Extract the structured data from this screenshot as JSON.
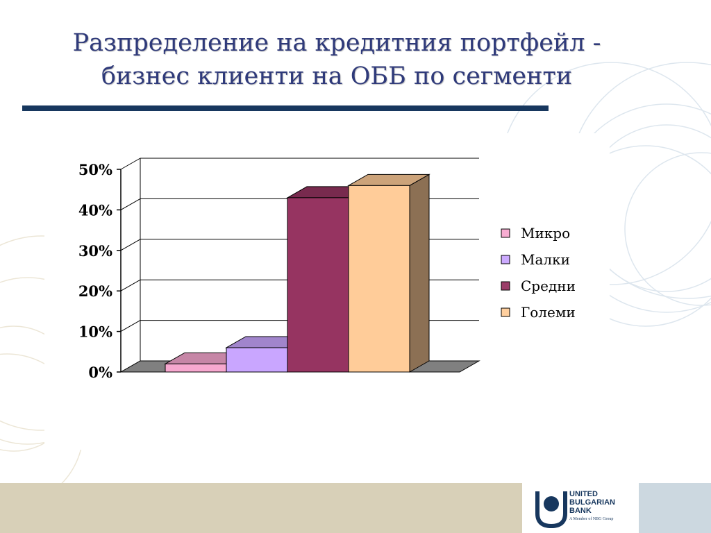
{
  "slide": {
    "title_line1": "Разпределение на кредитния портфейл -",
    "title_line2": "бизнес клиенти на ОББ по сегменти"
  },
  "brand": {
    "name_line1": "UNITED",
    "name_line2": "BULGARIAN",
    "name_line3": "BANK",
    "tagline": "A Member of NBG Group"
  },
  "colors": {
    "title": "#2f3a7a",
    "rule": "#17375e",
    "footer_band": "#d8d0b8"
  },
  "chart_data": {
    "type": "bar",
    "style": "3d-clustered",
    "title": "",
    "xlabel": "",
    "ylabel": "",
    "ylim": [
      0,
      0.5
    ],
    "y_ticks": [
      "0%",
      "10%",
      "20%",
      "30%",
      "40%",
      "50%"
    ],
    "grid": true,
    "legend_position": "right",
    "series": [
      {
        "name": "Микро",
        "value": 0.02,
        "color": "#f7a8cf"
      },
      {
        "name": "Малки",
        "value": 0.06,
        "color": "#c9a6ff"
      },
      {
        "name": "Средни",
        "value": 0.43,
        "color": "#963461"
      },
      {
        "name": "Големи",
        "value": 0.46,
        "color": "#ffcc99"
      }
    ]
  }
}
